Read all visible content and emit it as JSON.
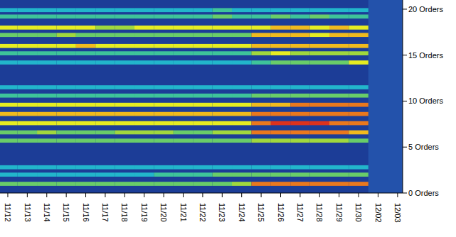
{
  "chart_data": {
    "type": "heatmap",
    "categories": [
      "11/12",
      "11/13",
      "11/14",
      "11/15",
      "11/16",
      "11/17",
      "11/18",
      "11/19",
      "11/20",
      "11/21",
      "11/22",
      "11/23",
      "11/24",
      "11/25",
      "11/26",
      "11/27",
      "11/28",
      "11/29",
      "11/30",
      "12/02",
      "12/03"
    ],
    "ylim": [
      0,
      21
    ],
    "yticks": [
      {
        "value": 0,
        "label": "0 Orders"
      },
      {
        "value": 5,
        "label": "5 Orders"
      },
      {
        "value": 10,
        "label": "10 Orders"
      },
      {
        "value": 15,
        "label": "15 Orders"
      },
      {
        "value": 20,
        "label": "20 Orders"
      }
    ],
    "zlim": [
      0,
      10
    ],
    "y_levels": [
      19.9,
      19.2,
      18.0,
      17.2,
      16.0,
      15.2,
      14.2,
      11.5,
      10.6,
      9.6,
      8.6,
      7.6,
      6.6,
      5.7,
      2.8,
      2.0,
      1.0
    ],
    "cells": [
      [
        3,
        3,
        3,
        3,
        3,
        3,
        3,
        3,
        3,
        3,
        3,
        4,
        3,
        3,
        3,
        3,
        3,
        3,
        3,
        null,
        null
      ],
      [
        4,
        4,
        4,
        4,
        4,
        4,
        4,
        4,
        4,
        4,
        4,
        5,
        4,
        4,
        5,
        4,
        5,
        4,
        4,
        null,
        null
      ],
      [
        7,
        7,
        7,
        7,
        7,
        6,
        6,
        7,
        7,
        7,
        7,
        7,
        7,
        7,
        8,
        8,
        7,
        8,
        7,
        null,
        null
      ],
      [
        5,
        5,
        5,
        6,
        5,
        5,
        5,
        5,
        5,
        5,
        5,
        5,
        5,
        8,
        8,
        8,
        7,
        8,
        8,
        null,
        null
      ],
      [
        7,
        7,
        7,
        7,
        8,
        7,
        7,
        7,
        7,
        7,
        7,
        7,
        7,
        8,
        8,
        8,
        8,
        8,
        8,
        null,
        null
      ],
      [
        4,
        4,
        4,
        4,
        4,
        4,
        4,
        4,
        4,
        4,
        4,
        4,
        4,
        6,
        7,
        6,
        6,
        6,
        6,
        null,
        null
      ],
      [
        3,
        3,
        3,
        3,
        3,
        3,
        3,
        3,
        3,
        3,
        3,
        3,
        3,
        4,
        5,
        5,
        5,
        5,
        7,
        null,
        null
      ],
      [
        3,
        3,
        3,
        3,
        3,
        3,
        3,
        3,
        3,
        3,
        3,
        3,
        3,
        3,
        3,
        3,
        3,
        3,
        3,
        null,
        null
      ],
      [
        4,
        4,
        4,
        4,
        4,
        4,
        4,
        4,
        4,
        4,
        4,
        4,
        4,
        5,
        5,
        5,
        5,
        5,
        5,
        null,
        null
      ],
      [
        7,
        7,
        7,
        7,
        7,
        7,
        7,
        7,
        7,
        7,
        7,
        7,
        7,
        8,
        8,
        9,
        9,
        9,
        9,
        null,
        null
      ],
      [
        8,
        8,
        8,
        8,
        8,
        8,
        8,
        8,
        8,
        8,
        8,
        8,
        8,
        9,
        9,
        9,
        9,
        9,
        9,
        null,
        null
      ],
      [
        7,
        7,
        7,
        7,
        7,
        7,
        7,
        7,
        7,
        7,
        7,
        7,
        7,
        9,
        10,
        10,
        10,
        9,
        9,
        null,
        null
      ],
      [
        5,
        5,
        6,
        5,
        5,
        5,
        6,
        6,
        6,
        5,
        5,
        6,
        6,
        9,
        9,
        9,
        9,
        9,
        8,
        null,
        null
      ],
      [
        5,
        5,
        5,
        5,
        5,
        5,
        5,
        5,
        5,
        5,
        5,
        5,
        5,
        6,
        6,
        6,
        6,
        6,
        5,
        null,
        null
      ],
      [
        3,
        3,
        3,
        3,
        3,
        3,
        3,
        3,
        3,
        3,
        3,
        3,
        3,
        3,
        3,
        3,
        3,
        3,
        3,
        null,
        null
      ],
      [
        3,
        3,
        3,
        3,
        3,
        3,
        3,
        3,
        4,
        4,
        4,
        5,
        5,
        5,
        5,
        5,
        5,
        5,
        5,
        null,
        null
      ],
      [
        5,
        5,
        5,
        5,
        5,
        5,
        5,
        5,
        5,
        5,
        5,
        5,
        6,
        9,
        9,
        9,
        9,
        9,
        9,
        null,
        null
      ]
    ]
  }
}
